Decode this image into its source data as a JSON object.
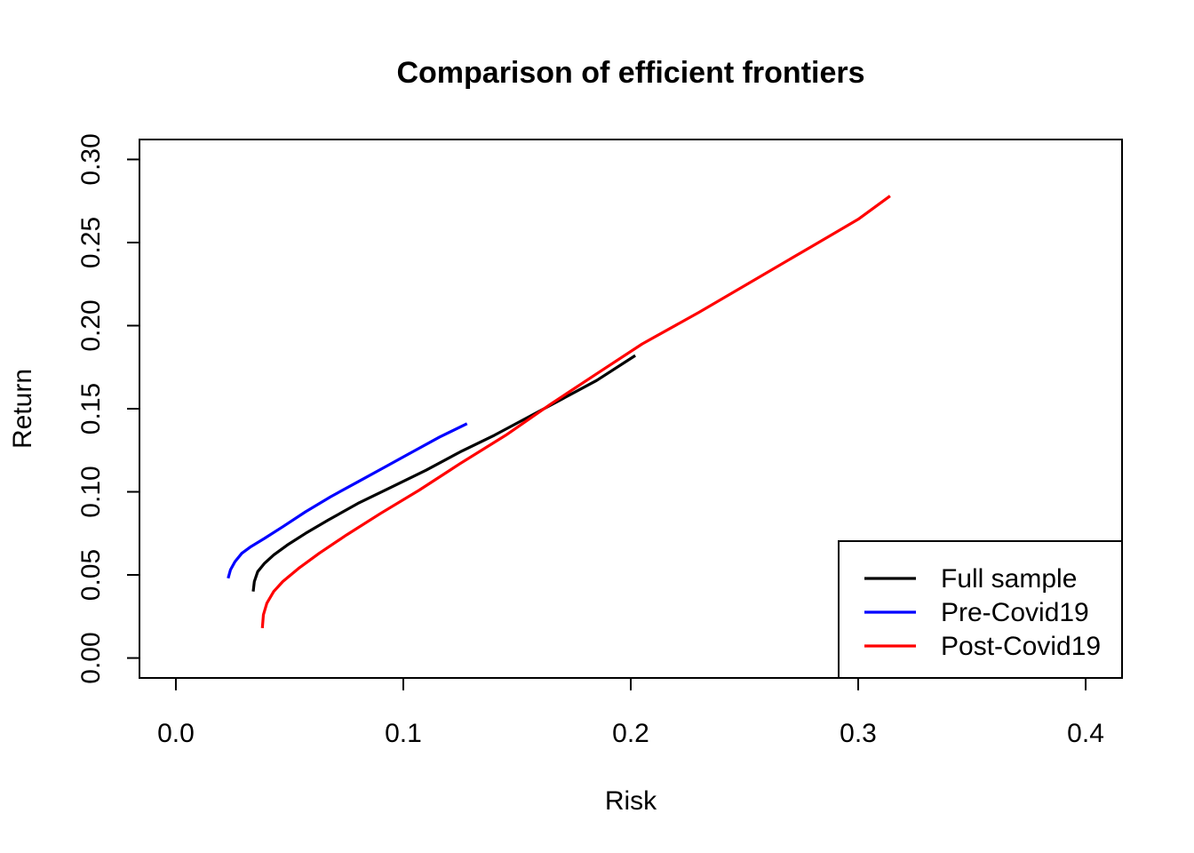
{
  "chart_data": {
    "type": "line",
    "title": "Comparison of efficient frontiers",
    "xlabel": "Risk",
    "ylabel": "Return",
    "xlim": [
      -0.016,
      0.416
    ],
    "ylim": [
      -0.012,
      0.312
    ],
    "xticks": [
      0.0,
      0.1,
      0.2,
      0.3,
      0.4
    ],
    "xtick_labels": [
      "0.0",
      "0.1",
      "0.2",
      "0.3",
      "0.4"
    ],
    "yticks": [
      0.0,
      0.05,
      0.1,
      0.15,
      0.2,
      0.25,
      0.3
    ],
    "ytick_labels": [
      "0.00",
      "0.05",
      "0.10",
      "0.15",
      "0.20",
      "0.25",
      "0.30"
    ],
    "grid": false,
    "legend_position": "bottom-right",
    "series": [
      {
        "name": "Full sample",
        "color": "#000000",
        "x": [
          0.034,
          0.0345,
          0.036,
          0.039,
          0.043,
          0.049,
          0.057,
          0.067,
          0.08,
          0.095,
          0.11,
          0.125,
          0.14,
          0.155,
          0.17,
          0.185,
          0.202
        ],
        "y": [
          0.04,
          0.046,
          0.052,
          0.057,
          0.062,
          0.068,
          0.075,
          0.083,
          0.093,
          0.103,
          0.113,
          0.124,
          0.134,
          0.145,
          0.156,
          0.167,
          0.182
        ]
      },
      {
        "name": "Pre-Covid19",
        "color": "#0000ff",
        "x": [
          0.023,
          0.024,
          0.026,
          0.029,
          0.033,
          0.039,
          0.047,
          0.057,
          0.068,
          0.08,
          0.092,
          0.104,
          0.116,
          0.128
        ],
        "y": [
          0.048,
          0.053,
          0.058,
          0.063,
          0.067,
          0.072,
          0.079,
          0.088,
          0.097,
          0.106,
          0.115,
          0.124,
          0.133,
          0.141
        ]
      },
      {
        "name": "Post-Covid19",
        "color": "#ff0000",
        "x": [
          0.038,
          0.0385,
          0.04,
          0.043,
          0.047,
          0.054,
          0.063,
          0.075,
          0.09,
          0.107,
          0.125,
          0.145,
          0.165,
          0.185,
          0.205,
          0.23,
          0.255,
          0.28,
          0.3,
          0.314
        ],
        "y": [
          0.018,
          0.026,
          0.033,
          0.04,
          0.046,
          0.054,
          0.063,
          0.074,
          0.087,
          0.101,
          0.117,
          0.134,
          0.153,
          0.171,
          0.189,
          0.208,
          0.228,
          0.248,
          0.264,
          0.278
        ]
      }
    ]
  }
}
